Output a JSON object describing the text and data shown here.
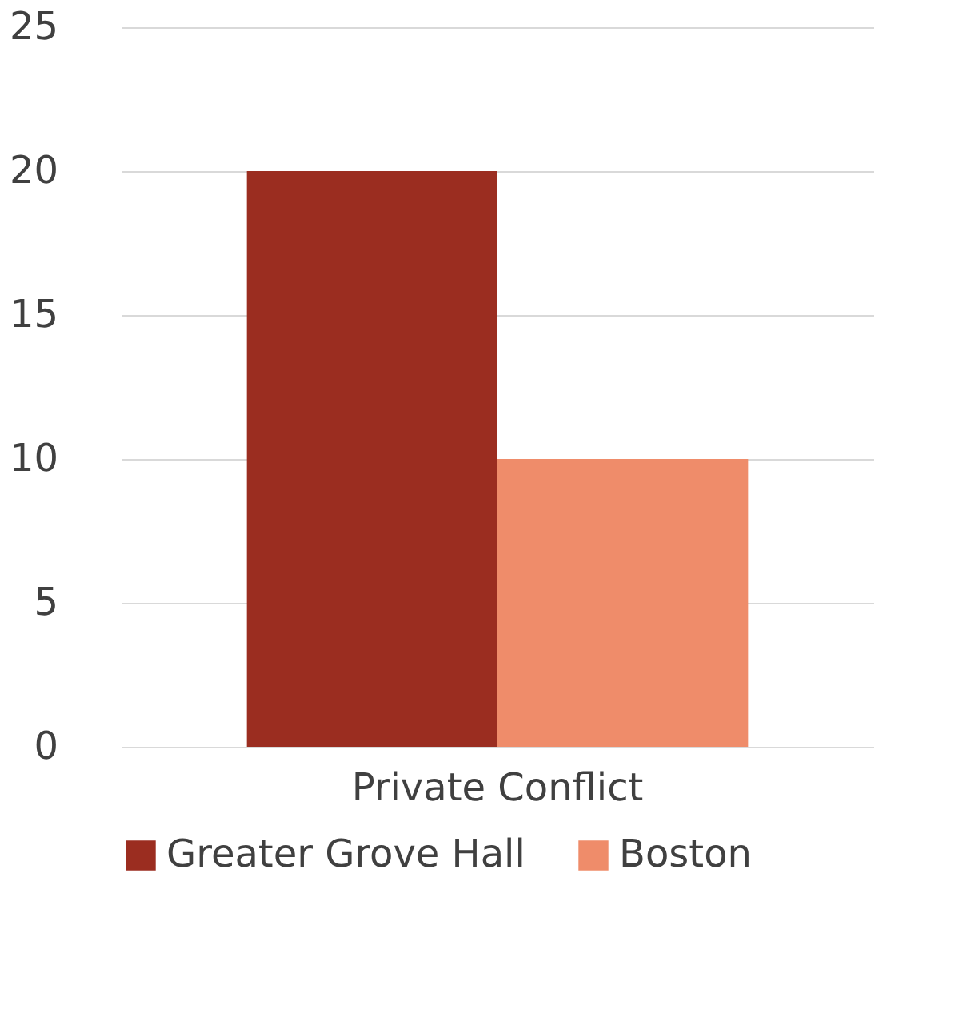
{
  "chart_data": {
    "type": "bar",
    "categories": [
      "Private Conflict"
    ],
    "series": [
      {
        "name": "Greater Grove Hall",
        "color": "#9b2d20",
        "values": [
          20
        ]
      },
      {
        "name": "Boston",
        "color": "#ef8c6a",
        "values": [
          10
        ]
      }
    ],
    "ylim": [
      0,
      25
    ],
    "yticks": [
      0,
      5,
      10,
      15,
      20,
      25
    ],
    "grid": "y",
    "legend": "bottom"
  }
}
